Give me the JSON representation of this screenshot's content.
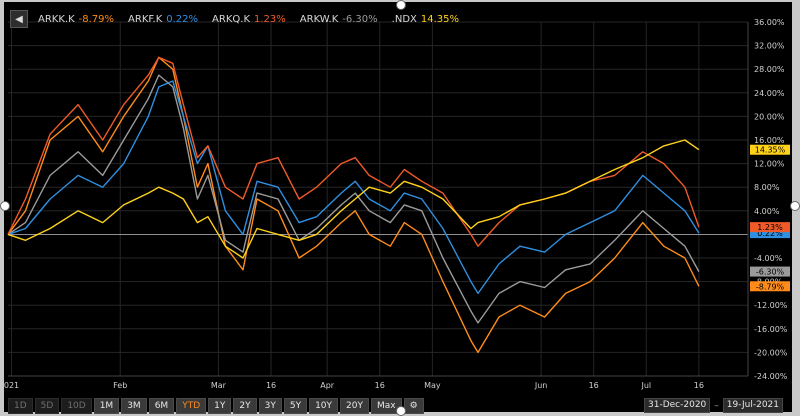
{
  "legend": [
    {
      "name": "ARKK.K",
      "value": "-8.79%",
      "color": "#ff8c1a"
    },
    {
      "name": "ARKF.K",
      "value": "0.22%",
      "color": "#2f8fe0"
    },
    {
      "name": "ARKQ.K",
      "value": "1.23%",
      "color": "#f05a28"
    },
    {
      "name": "ARKW.K",
      "value": "-6.30%",
      "color": "#9b9b9b"
    },
    {
      "name": ".NDX",
      "value": "14.35%",
      "color": "#ffd21a"
    }
  ],
  "toolbar": {
    "periods": [
      {
        "label": "1D",
        "disabled": true
      },
      {
        "label": "5D",
        "disabled": true
      },
      {
        "label": "10D",
        "disabled": true
      },
      {
        "label": "1M"
      },
      {
        "label": "3M"
      },
      {
        "label": "6M"
      },
      {
        "label": "YTD",
        "active": true
      },
      {
        "label": "1Y"
      },
      {
        "label": "2Y"
      },
      {
        "label": "3Y"
      },
      {
        "label": "5Y"
      },
      {
        "label": "10Y"
      },
      {
        "label": "20Y"
      },
      {
        "label": "Max"
      }
    ],
    "settings_icon": "gear-icon"
  },
  "range": {
    "start": "31-Dec-2020",
    "separator": "–",
    "end": "19-Jul-2021"
  },
  "chart_data": {
    "type": "line",
    "x_type": "date",
    "xlim": [
      "2020-12-31",
      "2021-07-30"
    ],
    "ylim": [
      -24,
      36
    ],
    "y_ticks": [
      -24,
      -20,
      -16,
      -12,
      -8,
      -4,
      0,
      4,
      8,
      12,
      16,
      20,
      24,
      28,
      32,
      36
    ],
    "y_tick_labels": [
      "-24.00%",
      "-20.00%",
      "-16.00%",
      "-12.00%",
      "-8.00%",
      "-4.00%",
      "",
      "4.00%",
      "8.00%",
      "12.00%",
      "16.00%",
      "20.00%",
      "24.00%",
      "28.00%",
      "32.00%",
      "36.00%"
    ],
    "x_ticks": [
      {
        "date": "2021-01-01",
        "label": "021"
      },
      {
        "date": "2021-02-01",
        "label": "Feb"
      },
      {
        "date": "2021-03-01",
        "label": "Mar"
      },
      {
        "date": "2021-03-16",
        "label": "16"
      },
      {
        "date": "2021-04-01",
        "label": "Apr"
      },
      {
        "date": "2021-04-16",
        "label": "16"
      },
      {
        "date": "2021-05-01",
        "label": "May"
      },
      {
        "date": "2021-06-01",
        "label": "Jun"
      },
      {
        "date": "2021-06-16",
        "label": "16"
      },
      {
        "date": "2021-07-01",
        "label": "Jul"
      },
      {
        "date": "2021-07-16",
        "label": "16"
      }
    ],
    "series": [
      {
        "name": "ARKK.K",
        "color": "#ff8c1a",
        "end_label": "-8.79%",
        "points": [
          [
            "2020-12-31",
            0
          ],
          [
            "2021-01-05",
            4
          ],
          [
            "2021-01-12",
            16
          ],
          [
            "2021-01-20",
            20
          ],
          [
            "2021-01-27",
            14
          ],
          [
            "2021-02-02",
            20
          ],
          [
            "2021-02-09",
            26
          ],
          [
            "2021-02-12",
            30
          ],
          [
            "2021-02-16",
            28
          ],
          [
            "2021-02-19",
            20
          ],
          [
            "2021-02-23",
            8
          ],
          [
            "2021-02-26",
            12
          ],
          [
            "2021-03-03",
            -2
          ],
          [
            "2021-03-08",
            -6
          ],
          [
            "2021-03-12",
            6
          ],
          [
            "2021-03-18",
            4
          ],
          [
            "2021-03-24",
            -4
          ],
          [
            "2021-03-29",
            -2
          ],
          [
            "2021-04-05",
            2
          ],
          [
            "2021-04-09",
            4
          ],
          [
            "2021-04-13",
            0
          ],
          [
            "2021-04-19",
            -2
          ],
          [
            "2021-04-23",
            2
          ],
          [
            "2021-04-28",
            0
          ],
          [
            "2021-05-04",
            -8
          ],
          [
            "2021-05-12",
            -18
          ],
          [
            "2021-05-14",
            -20
          ],
          [
            "2021-05-20",
            -14
          ],
          [
            "2021-05-26",
            -12
          ],
          [
            "2021-06-02",
            -14
          ],
          [
            "2021-06-08",
            -10
          ],
          [
            "2021-06-15",
            -8
          ],
          [
            "2021-06-22",
            -4
          ],
          [
            "2021-06-30",
            2
          ],
          [
            "2021-07-06",
            -2
          ],
          [
            "2021-07-12",
            -4
          ],
          [
            "2021-07-16",
            -8.79
          ]
        ]
      },
      {
        "name": "ARKW.K",
        "color": "#9b9b9b",
        "end_label": "-6.30%",
        "points": [
          [
            "2020-12-31",
            0
          ],
          [
            "2021-01-05",
            2
          ],
          [
            "2021-01-12",
            10
          ],
          [
            "2021-01-20",
            14
          ],
          [
            "2021-01-27",
            10
          ],
          [
            "2021-02-02",
            16
          ],
          [
            "2021-02-09",
            23
          ],
          [
            "2021-02-12",
            27
          ],
          [
            "2021-02-16",
            25
          ],
          [
            "2021-02-19",
            18
          ],
          [
            "2021-02-23",
            6
          ],
          [
            "2021-02-26",
            10
          ],
          [
            "2021-03-03",
            -1
          ],
          [
            "2021-03-08",
            -3
          ],
          [
            "2021-03-12",
            7
          ],
          [
            "2021-03-18",
            6
          ],
          [
            "2021-03-24",
            -1
          ],
          [
            "2021-03-29",
            1
          ],
          [
            "2021-04-05",
            5
          ],
          [
            "2021-04-09",
            7
          ],
          [
            "2021-04-13",
            4
          ],
          [
            "2021-04-19",
            2
          ],
          [
            "2021-04-23",
            5
          ],
          [
            "2021-04-28",
            4
          ],
          [
            "2021-05-04",
            -4
          ],
          [
            "2021-05-12",
            -13
          ],
          [
            "2021-05-14",
            -15
          ],
          [
            "2021-05-20",
            -10
          ],
          [
            "2021-05-26",
            -8
          ],
          [
            "2021-06-02",
            -9
          ],
          [
            "2021-06-08",
            -6
          ],
          [
            "2021-06-15",
            -5
          ],
          [
            "2021-06-22",
            -1
          ],
          [
            "2021-06-30",
            4
          ],
          [
            "2021-07-06",
            1
          ],
          [
            "2021-07-12",
            -2
          ],
          [
            "2021-07-16",
            -6.3
          ]
        ]
      },
      {
        "name": "ARKF.K",
        "color": "#2f8fe0",
        "end_label": "0.22%",
        "points": [
          [
            "2020-12-31",
            0
          ],
          [
            "2021-01-05",
            1
          ],
          [
            "2021-01-12",
            6
          ],
          [
            "2021-01-20",
            10
          ],
          [
            "2021-01-27",
            8
          ],
          [
            "2021-02-02",
            12
          ],
          [
            "2021-02-09",
            20
          ],
          [
            "2021-02-12",
            25
          ],
          [
            "2021-02-16",
            26
          ],
          [
            "2021-02-19",
            20
          ],
          [
            "2021-02-23",
            12
          ],
          [
            "2021-02-26",
            15
          ],
          [
            "2021-03-03",
            4
          ],
          [
            "2021-03-08",
            0
          ],
          [
            "2021-03-12",
            9
          ],
          [
            "2021-03-18",
            8
          ],
          [
            "2021-03-24",
            2
          ],
          [
            "2021-03-29",
            3
          ],
          [
            "2021-04-05",
            7
          ],
          [
            "2021-04-09",
            9
          ],
          [
            "2021-04-13",
            6
          ],
          [
            "2021-04-19",
            4
          ],
          [
            "2021-04-23",
            7
          ],
          [
            "2021-04-28",
            6
          ],
          [
            "2021-05-04",
            1
          ],
          [
            "2021-05-12",
            -8
          ],
          [
            "2021-05-14",
            -10
          ],
          [
            "2021-05-20",
            -5
          ],
          [
            "2021-05-26",
            -2
          ],
          [
            "2021-06-02",
            -3
          ],
          [
            "2021-06-08",
            0
          ],
          [
            "2021-06-15",
            2
          ],
          [
            "2021-06-22",
            4
          ],
          [
            "2021-06-30",
            10
          ],
          [
            "2021-07-06",
            7
          ],
          [
            "2021-07-12",
            4
          ],
          [
            "2021-07-16",
            0.22
          ]
        ]
      },
      {
        "name": "ARKQ.K",
        "color": "#f05a28",
        "end_label": "1.23%",
        "points": [
          [
            "2020-12-31",
            0
          ],
          [
            "2021-01-05",
            6
          ],
          [
            "2021-01-12",
            17
          ],
          [
            "2021-01-20",
            22
          ],
          [
            "2021-01-27",
            16
          ],
          [
            "2021-02-02",
            22
          ],
          [
            "2021-02-09",
            27
          ],
          [
            "2021-02-12",
            30
          ],
          [
            "2021-02-16",
            29
          ],
          [
            "2021-02-19",
            22
          ],
          [
            "2021-02-23",
            13
          ],
          [
            "2021-02-26",
            15
          ],
          [
            "2021-03-03",
            8
          ],
          [
            "2021-03-08",
            6
          ],
          [
            "2021-03-12",
            12
          ],
          [
            "2021-03-18",
            13
          ],
          [
            "2021-03-24",
            6
          ],
          [
            "2021-03-29",
            8
          ],
          [
            "2021-04-05",
            12
          ],
          [
            "2021-04-09",
            13
          ],
          [
            "2021-04-13",
            10
          ],
          [
            "2021-04-19",
            8
          ],
          [
            "2021-04-23",
            11
          ],
          [
            "2021-04-28",
            9
          ],
          [
            "2021-05-04",
            7
          ],
          [
            "2021-05-12",
            0
          ],
          [
            "2021-05-14",
            -2
          ],
          [
            "2021-05-20",
            2
          ],
          [
            "2021-05-26",
            5
          ],
          [
            "2021-06-02",
            6
          ],
          [
            "2021-06-08",
            7
          ],
          [
            "2021-06-15",
            9
          ],
          [
            "2021-06-22",
            10
          ],
          [
            "2021-06-30",
            14
          ],
          [
            "2021-07-06",
            12
          ],
          [
            "2021-07-12",
            8
          ],
          [
            "2021-07-16",
            1.23
          ]
        ]
      },
      {
        "name": ".NDX",
        "color": "#ffd21a",
        "end_label": "14.35%",
        "points": [
          [
            "2020-12-31",
            0
          ],
          [
            "2021-01-05",
            -1
          ],
          [
            "2021-01-12",
            1
          ],
          [
            "2021-01-20",
            4
          ],
          [
            "2021-01-27",
            2
          ],
          [
            "2021-02-02",
            5
          ],
          [
            "2021-02-09",
            7
          ],
          [
            "2021-02-12",
            8
          ],
          [
            "2021-02-16",
            7
          ],
          [
            "2021-02-19",
            6
          ],
          [
            "2021-02-23",
            2
          ],
          [
            "2021-02-26",
            3
          ],
          [
            "2021-03-03",
            -2
          ],
          [
            "2021-03-08",
            -4
          ],
          [
            "2021-03-12",
            1
          ],
          [
            "2021-03-18",
            0
          ],
          [
            "2021-03-24",
            -1
          ],
          [
            "2021-03-29",
            0
          ],
          [
            "2021-04-05",
            4
          ],
          [
            "2021-04-09",
            6
          ],
          [
            "2021-04-13",
            8
          ],
          [
            "2021-04-19",
            7
          ],
          [
            "2021-04-23",
            9
          ],
          [
            "2021-04-28",
            8
          ],
          [
            "2021-05-04",
            6
          ],
          [
            "2021-05-12",
            1
          ],
          [
            "2021-05-14",
            2
          ],
          [
            "2021-05-20",
            3
          ],
          [
            "2021-05-26",
            5
          ],
          [
            "2021-06-02",
            6
          ],
          [
            "2021-06-08",
            7
          ],
          [
            "2021-06-15",
            9
          ],
          [
            "2021-06-22",
            11
          ],
          [
            "2021-06-30",
            13
          ],
          [
            "2021-07-06",
            15
          ],
          [
            "2021-07-12",
            16
          ],
          [
            "2021-07-16",
            14.35
          ]
        ]
      }
    ]
  }
}
